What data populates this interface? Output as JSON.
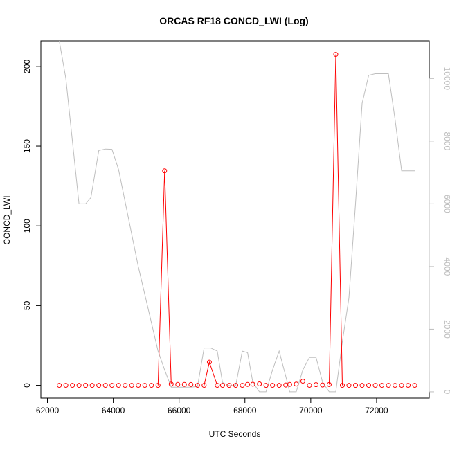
{
  "chart_data": {
    "type": "line",
    "title": "ORCAS RF18 CONCD_LWI (Log)",
    "xlabel": "UTC Seconds",
    "ylabel": "CONCD_LWI",
    "xlim": [
      61800,
      73600
    ],
    "ylim": [
      -8,
      216
    ],
    "y2lim": [
      -200,
      11200
    ],
    "x_ticks": [
      62000,
      64000,
      66000,
      68000,
      70000,
      72000
    ],
    "y_ticks": [
      0,
      50,
      100,
      150,
      200
    ],
    "y2_ticks": [
      0,
      2000,
      4000,
      6000,
      8000,
      10000
    ],
    "grid": false,
    "series": [
      {
        "color": "#ff0000",
        "marker": "open-circle",
        "x": [
          62360,
          62560,
          62760,
          62960,
          63160,
          63360,
          63560,
          63760,
          63960,
          64160,
          64360,
          64560,
          64760,
          64960,
          65160,
          65360,
          65560,
          65760,
          65960,
          66160,
          66360,
          66560,
          66760,
          66920,
          67160,
          67320,
          67520,
          67720,
          67920,
          68080,
          68240,
          68440,
          68640,
          68840,
          69040,
          69240,
          69360,
          69560,
          69760,
          69960,
          70160,
          70360,
          70560,
          70760,
          70960,
          71160,
          71360,
          71560,
          71760,
          71960,
          72160,
          72360,
          72560,
          72760,
          72960,
          73160
        ],
        "y": [
          0,
          0,
          0,
          0,
          0,
          0,
          0,
          0,
          0,
          0,
          0,
          0,
          0,
          0,
          0,
          0,
          134.5,
          0.8,
          0.6,
          0.6,
          0.5,
          0,
          0,
          14.5,
          0,
          0,
          0,
          0,
          0,
          0.6,
          0.7,
          0.9,
          0,
          0,
          0,
          0.2,
          0.6,
          0.8,
          2.6,
          0,
          0.4,
          0.2,
          0.5,
          207.5,
          0,
          0,
          0,
          0,
          0,
          0,
          0,
          0,
          0,
          0,
          0,
          0
        ],
        "line_segments": [
          {
            "x": [
              65360,
              65560,
              65760
            ],
            "y": [
              0,
              134.5,
              0.8
            ]
          },
          {
            "x": [
              66760,
              66920,
              67160
            ],
            "y": [
              0,
              14.5,
              0
            ]
          },
          {
            "x": [
              70560,
              70760,
              70960
            ],
            "y": [
              0.5,
              207.5,
              0
            ]
          }
        ]
      },
      {
        "color": "#bebebe",
        "axis": "right",
        "x": [
          62360,
          62560,
          62960,
          63160,
          63320,
          63560,
          63760,
          63960,
          64160,
          64760,
          65360,
          65560,
          65760,
          66160,
          66360,
          66560,
          66760,
          66960,
          67160,
          67320,
          67520,
          67720,
          67920,
          68080,
          68240,
          68440,
          68640,
          68840,
          69040,
          69240,
          69360,
          69560,
          69760,
          69960,
          70160,
          70360,
          70560,
          70760,
          70960,
          71160,
          71360,
          71560,
          71760,
          71960,
          72160,
          72360,
          72560,
          72760,
          72960,
          73160
        ],
        "y": [
          11200,
          10000,
          6000,
          6000,
          6200,
          7700,
          7750,
          7740,
          7100,
          4000,
          1300,
          700,
          150,
          150,
          150,
          170,
          1400,
          1400,
          1300,
          300,
          200,
          200,
          1300,
          1250,
          300,
          0,
          0,
          700,
          1300,
          500,
          0,
          0,
          700,
          1100,
          1100,
          300,
          0,
          0,
          1600,
          3000,
          6000,
          9200,
          10100,
          10150,
          10150,
          10150,
          8700,
          7050,
          7050,
          7050
        ]
      }
    ]
  }
}
